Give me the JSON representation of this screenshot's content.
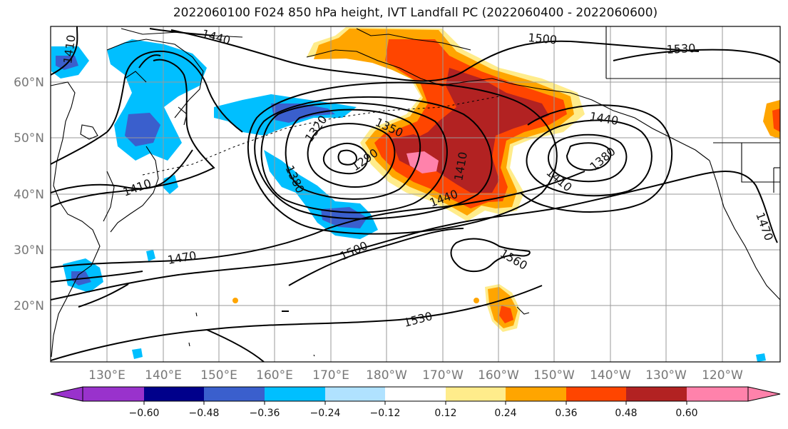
{
  "title": "2022060100 F024 850 hPa height, IVT Landfall PC (2022060400 - 2022060600)",
  "lat_labels": [
    "60°N",
    "50°N",
    "40°N",
    "30°N",
    "20°N"
  ],
  "lon_labels": [
    "130°E",
    "140°E",
    "150°E",
    "160°E",
    "170°E",
    "180°W",
    "170°W",
    "160°W",
    "150°W",
    "140°W",
    "130°W",
    "120°W"
  ],
  "contour_labels": [
    "1440",
    "1500",
    "1530",
    "1410",
    "1350",
    "1320",
    "1380",
    "1290",
    "1410",
    "1440",
    "1410",
    "1440",
    "1410",
    "1380",
    "1470",
    "1470",
    "1500",
    "1560",
    "1530"
  ],
  "colorbar": {
    "ticks": [
      "−0.60",
      "−0.48",
      "−0.36",
      "−0.24",
      "−0.12",
      "0.12",
      "0.24",
      "0.36",
      "0.48",
      "0.60"
    ],
    "colors": [
      "#9932CC",
      "#00008B",
      "#3A5FCD",
      "#00BFFF",
      "#B0E2FF",
      "#FFFFFF",
      "#FFEC8B",
      "#FFA500",
      "#FF4500",
      "#B22222",
      "#FF82AB",
      "#FF82AB"
    ]
  },
  "colors": {
    "neg_strong": "#3A5FCD",
    "neg": "#00BFFF",
    "pos_weak": "#FFEC8B",
    "pos": "#FFA500",
    "pos_mid": "#FF4500",
    "pos_high": "#B22222",
    "pos_max": "#FF82AB"
  }
}
